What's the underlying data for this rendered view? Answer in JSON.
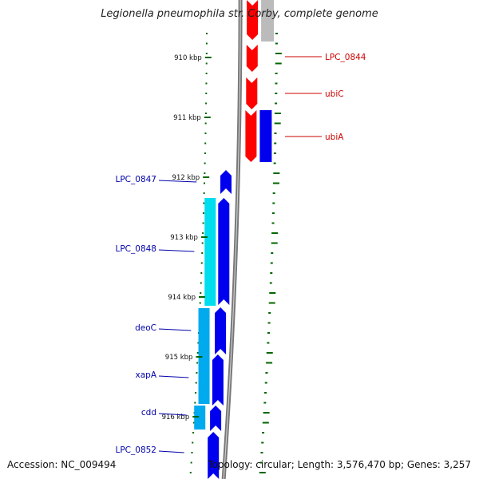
{
  "title": "Legionella pneumophila str. Corby, complete genome",
  "accession": {
    "label": "Accession:",
    "value": "NC_009494"
  },
  "summary": {
    "topology_label": "Topology:",
    "topology": "circular",
    "length_label": "Length:",
    "length": "3,576,470 bp",
    "genes_label": "Genes:",
    "genes": "3,257"
  },
  "colors": {
    "forward_cds": "#0000ee",
    "forward_cds_alt": "#00aaee",
    "forward_cds_light": "#00ddee",
    "reverse_cds": "#ff0000",
    "other_feature": "#bbbbbb",
    "backbone": "#777777",
    "ticks": "#006600",
    "reverse_label": "#cc0000",
    "forward_label": "#0000aa"
  },
  "ticks": [
    {
      "label": "910 kbp"
    },
    {
      "label": "911 kbp"
    },
    {
      "label": "912 kbp"
    },
    {
      "label": "913 kbp"
    },
    {
      "label": "914 kbp"
    },
    {
      "label": "915 kbp"
    },
    {
      "label": "916 kbp"
    }
  ],
  "reverse_genes": [
    {
      "name": "LPC_0844"
    },
    {
      "name": "ubiC"
    },
    {
      "name": "ubiA"
    }
  ],
  "forward_genes": [
    {
      "name": "LPC_0847"
    },
    {
      "name": "LPC_0848"
    },
    {
      "name": "deoC"
    },
    {
      "name": "xapA"
    },
    {
      "name": "cdd"
    },
    {
      "name": "LPC_0852"
    }
  ]
}
